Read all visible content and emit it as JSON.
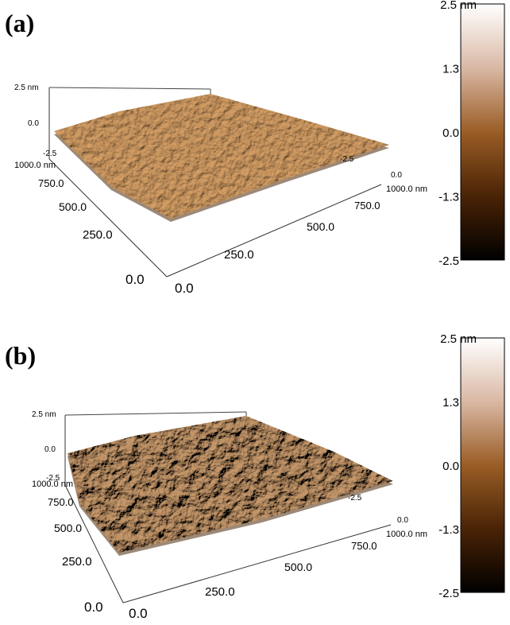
{
  "panels": [
    {
      "label": "(a)",
      "colorbar": [
        "2.5 nm",
        "1.3",
        "0.0",
        "-1.3",
        "-2.5"
      ],
      "z_axis": [
        "2.5 nm",
        "0.0",
        "-2.5"
      ],
      "y_axis": [
        "1000.0 nm",
        "750.0",
        "500.0",
        "250.0",
        "0.0"
      ],
      "x_axis": [
        "0.0",
        "250.0",
        "500.0",
        "750.0",
        "1000.0 nm",
        "0.0"
      ],
      "back_label": "-2.5"
    },
    {
      "label": "(b)",
      "colorbar": [
        "2.5 nm",
        "1.3",
        "0.0",
        "-1.3",
        "-2.5"
      ],
      "z_axis": [
        "2.5 nm",
        "0.0",
        "-2.5"
      ],
      "y_axis": [
        "1000.0 nm",
        "750.0",
        "500.0",
        "250.0",
        "0.0"
      ],
      "x_axis": [
        "0.0",
        "250.0",
        "500.0",
        "750.0",
        "1000.0 nm",
        "0.0"
      ],
      "back_label": "-2.5"
    }
  ]
}
